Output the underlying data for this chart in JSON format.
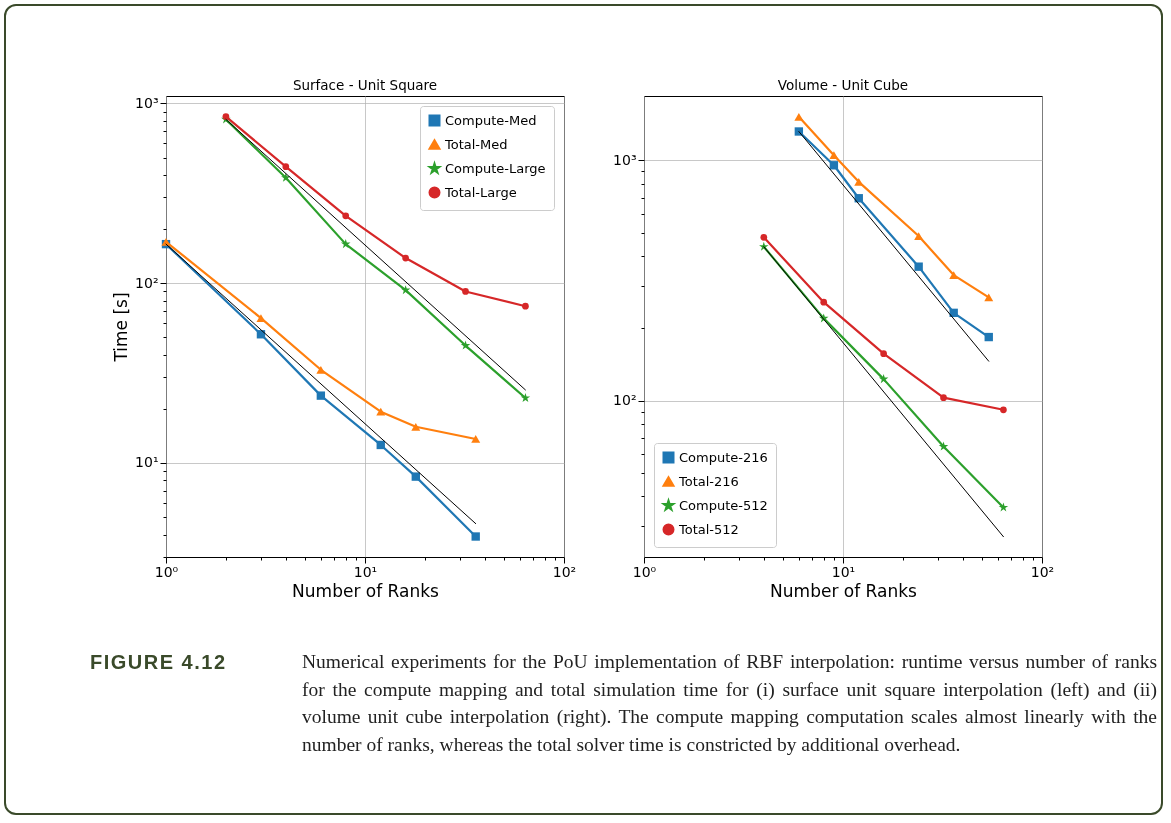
{
  "chart_data": [
    {
      "type": "line",
      "title": "Surface - Unit Square",
      "xlabel": "Number of Ranks",
      "ylabel": "Time [s]",
      "log": "xy",
      "grid": true,
      "legend": "top right",
      "xlim": [
        1,
        100
      ],
      "ylim": [
        3,
        1100
      ],
      "xticks": [
        {
          "value": 1,
          "label": "10⁰"
        },
        {
          "value": 2,
          "label": null
        },
        {
          "value": 3,
          "label": null
        },
        {
          "value": 4,
          "label": null
        },
        {
          "value": 5,
          "label": null
        },
        {
          "value": 6,
          "label": null
        },
        {
          "value": 7,
          "label": null
        },
        {
          "value": 8,
          "label": null
        },
        {
          "value": 9,
          "label": null
        },
        {
          "value": 10,
          "label": "10¹"
        },
        {
          "value": 20,
          "label": null
        },
        {
          "value": 30,
          "label": null
        },
        {
          "value": 40,
          "label": null
        },
        {
          "value": 50,
          "label": null
        },
        {
          "value": 60,
          "label": null
        },
        {
          "value": 70,
          "label": null
        },
        {
          "value": 80,
          "label": null
        },
        {
          "value": 90,
          "label": null
        },
        {
          "value": 100,
          "label": "10²"
        }
      ],
      "yticks": [
        {
          "value": 3,
          "label": null
        },
        {
          "value": 4,
          "label": null
        },
        {
          "value": 5,
          "label": null
        },
        {
          "value": 6,
          "label": null
        },
        {
          "value": 7,
          "label": null
        },
        {
          "value": 8,
          "label": null
        },
        {
          "value": 9,
          "label": null
        },
        {
          "value": 10,
          "label": "10¹"
        },
        {
          "value": 20,
          "label": null
        },
        {
          "value": 30,
          "label": null
        },
        {
          "value": 40,
          "label": null
        },
        {
          "value": 50,
          "label": null
        },
        {
          "value": 60,
          "label": null
        },
        {
          "value": 70,
          "label": null
        },
        {
          "value": 80,
          "label": null
        },
        {
          "value": 90,
          "label": null
        },
        {
          "value": 100,
          "label": "10²"
        },
        {
          "value": 200,
          "label": null
        },
        {
          "value": 300,
          "label": null
        },
        {
          "value": 400,
          "label": null
        },
        {
          "value": 500,
          "label": null
        },
        {
          "value": 600,
          "label": null
        },
        {
          "value": 700,
          "label": null
        },
        {
          "value": 800,
          "label": null
        },
        {
          "value": 900,
          "label": null
        },
        {
          "value": 1000,
          "label": "10³"
        }
      ],
      "series": [
        {
          "name": "Compute-Med",
          "color": "#1f77b4",
          "marker": "square",
          "x": [
            1,
            3,
            6,
            12,
            18,
            36
          ],
          "values": [
            165,
            52,
            23.7,
            12.6,
            8.4,
            3.9
          ]
        },
        {
          "name": "Total-Med",
          "color": "#ff7f0e",
          "marker": "triangle",
          "x": [
            1,
            3,
            6,
            12,
            18,
            36
          ],
          "values": [
            170,
            64,
            33,
            19.3,
            15.9,
            13.6
          ]
        },
        {
          "name": "Compute-Large",
          "color": "#2ca02c",
          "marker": "star",
          "x": [
            2,
            4,
            8,
            16,
            32,
            64
          ],
          "values": [
            815,
            386,
            165,
            91.5,
            45,
            23
          ]
        },
        {
          "name": "Total-Large",
          "color": "#d62728",
          "marker": "circle",
          "x": [
            2,
            4,
            8,
            16,
            32,
            64
          ],
          "values": [
            845,
            445,
            237,
            138,
            90,
            74.5
          ]
        },
        {
          "color": "#000000",
          "marker": "none",
          "x": [
            1,
            36
          ],
          "values": [
            165,
            4.6
          ]
        },
        {
          "color": "#000000",
          "marker": "none",
          "x": [
            2,
            64
          ],
          "values": [
            815,
            25.5
          ]
        }
      ],
      "annotations": [
        "FIGURE 4.12",
        "Numerical experiments for the PoU implementation of RBF interpolation: runtime versus number of ranks for the compute mapping and total simulation time for (i) surface unit square interpolation (left) and (ii) volume unit cube interpolation (right). The compute mapping computation scales almost linearly with the number of ranks, whereas the total solver time is constricted by additional overhead."
      ]
    },
    {
      "type": "line",
      "title": "Volume - Unit Cube",
      "xlabel": "Number of Ranks",
      "log": "xy",
      "grid": true,
      "legend": "bottom left",
      "xlim": [
        1,
        100
      ],
      "ylim": [
        22.4,
        1850
      ],
      "xticks": [
        {
          "value": 1,
          "label": "10⁰"
        },
        {
          "value": 2,
          "label": null
        },
        {
          "value": 3,
          "label": null
        },
        {
          "value": 4,
          "label": null
        },
        {
          "value": 5,
          "label": null
        },
        {
          "value": 6,
          "label": null
        },
        {
          "value": 7,
          "label": null
        },
        {
          "value": 8,
          "label": null
        },
        {
          "value": 9,
          "label": null
        },
        {
          "value": 10,
          "label": "10¹"
        },
        {
          "value": 20,
          "label": null
        },
        {
          "value": 30,
          "label": null
        },
        {
          "value": 40,
          "label": null
        },
        {
          "value": 50,
          "label": null
        },
        {
          "value": 60,
          "label": null
        },
        {
          "value": 70,
          "label": null
        },
        {
          "value": 80,
          "label": null
        },
        {
          "value": 90,
          "label": null
        },
        {
          "value": 100,
          "label": "10²"
        }
      ],
      "yticks": [
        {
          "value": 30,
          "label": null
        },
        {
          "value": 40,
          "label": null
        },
        {
          "value": 50,
          "label": null
        },
        {
          "value": 60,
          "label": null
        },
        {
          "value": 70,
          "label": null
        },
        {
          "value": 80,
          "label": null
        },
        {
          "value": 90,
          "label": null
        },
        {
          "value": 100,
          "label": "10²"
        },
        {
          "value": 200,
          "label": null
        },
        {
          "value": 300,
          "label": null
        },
        {
          "value": 400,
          "label": null
        },
        {
          "value": 500,
          "label": null
        },
        {
          "value": 600,
          "label": null
        },
        {
          "value": 700,
          "label": null
        },
        {
          "value": 800,
          "label": null
        },
        {
          "value": 900,
          "label": null
        },
        {
          "value": 1000,
          "label": "10³"
        }
      ],
      "series": [
        {
          "name": "Compute-216",
          "color": "#1f77b4",
          "marker": "square",
          "x": [
            6,
            9,
            12,
            24,
            36,
            54
          ],
          "values": [
            1317,
            953,
            695,
            361,
            232,
            184
          ]
        },
        {
          "name": "Total-216",
          "color": "#ff7f0e",
          "marker": "triangle",
          "x": [
            6,
            9,
            12,
            24,
            36,
            54
          ],
          "values": [
            1515,
            1050,
            813,
            484,
            333,
            269
          ]
        },
        {
          "name": "Compute-512",
          "color": "#2ca02c",
          "marker": "star",
          "x": [
            4,
            8,
            16,
            32,
            64
          ],
          "values": [
            437,
            220,
            123,
            64.5,
            36
          ]
        },
        {
          "name": "Total-512",
          "color": "#d62728",
          "marker": "circle",
          "x": [
            4,
            8,
            16,
            32,
            64
          ],
          "values": [
            478,
            257,
            157,
            103,
            91.7
          ]
        },
        {
          "color": "#000000",
          "marker": "none",
          "x": [
            6,
            54
          ],
          "values": [
            1317,
            146
          ]
        },
        {
          "color": "#000000",
          "marker": "none",
          "x": [
            4,
            64
          ],
          "values": [
            437,
            27.2
          ]
        }
      ]
    }
  ]
}
